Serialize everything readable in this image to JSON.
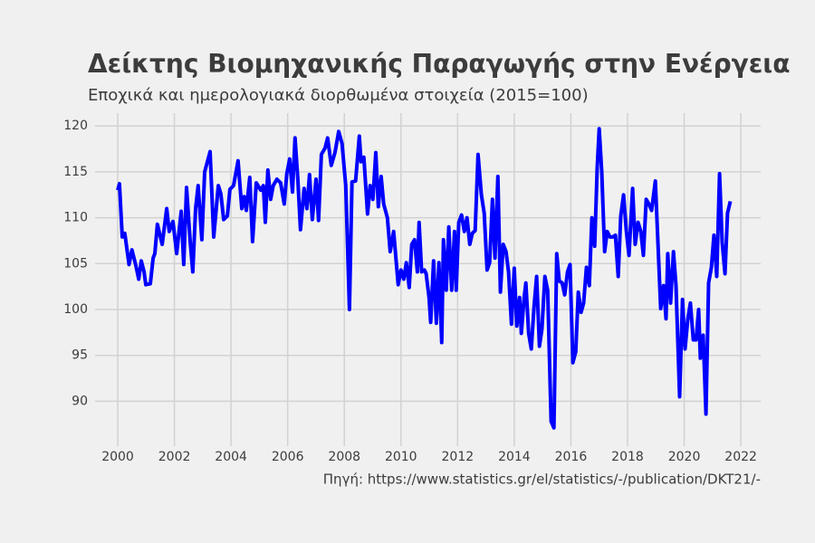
{
  "chart_data": {
    "type": "line",
    "title": "Δείκτης Βιομηχανικής Παραγωγής στην Ενέργεια",
    "subtitle": "Εποχικά και ημερολογιακά διορθωμένα στοιχεία (2015=100)",
    "source": "Πηγή: https://www.statistics.gr/el/statistics/-/publication/DKT21/-",
    "color": "#0000ff",
    "grid": true,
    "xlim": [
      1999.2,
      2022.7
    ],
    "ylim": [
      85.9,
      121.4
    ],
    "xticks": [
      2000,
      2002,
      2004,
      2006,
      2008,
      2010,
      2012,
      2014,
      2016,
      2018,
      2020,
      2022
    ],
    "yticks": [
      90,
      95,
      100,
      105,
      110,
      115,
      120
    ],
    "x": [
      2000.0,
      2000.06,
      2000.16,
      2000.25,
      2000.4,
      2000.5,
      2000.64,
      2000.74,
      2000.83,
      2000.93,
      2000.99,
      2001.15,
      2001.25,
      2001.31,
      2001.4,
      2001.57,
      2001.73,
      2001.82,
      2001.95,
      2002.08,
      2002.24,
      2002.33,
      2002.43,
      2002.56,
      2002.65,
      2002.75,
      2002.84,
      2002.97,
      2003.07,
      2003.26,
      2003.39,
      2003.55,
      2003.64,
      2003.74,
      2003.87,
      2003.96,
      2004.09,
      2004.25,
      2004.38,
      2004.47,
      2004.54,
      2004.66,
      2004.76,
      2004.89,
      2005.05,
      2005.14,
      2005.21,
      2005.3,
      2005.4,
      2005.49,
      2005.62,
      2005.75,
      2005.88,
      2005.97,
      2006.07,
      2006.17,
      2006.26,
      2006.36,
      2006.45,
      2006.58,
      2006.68,
      2006.77,
      2006.87,
      2007.0,
      2007.09,
      2007.19,
      2007.32,
      2007.41,
      2007.54,
      2007.67,
      2007.8,
      2007.92,
      2008.05,
      2008.18,
      2008.27,
      2008.4,
      2008.53,
      2008.59,
      2008.69,
      2008.82,
      2008.91,
      2009.01,
      2009.11,
      2009.2,
      2009.3,
      2009.39,
      2009.52,
      2009.62,
      2009.74,
      2009.9,
      2010.0,
      2010.1,
      2010.19,
      2010.29,
      2010.38,
      2010.48,
      2010.58,
      2010.64,
      2010.73,
      2010.83,
      2010.89,
      2010.99,
      2011.05,
      2011.15,
      2011.25,
      2011.34,
      2011.44,
      2011.5,
      2011.6,
      2011.69,
      2011.79,
      2011.89,
      2011.95,
      2012.04,
      2012.14,
      2012.24,
      2012.33,
      2012.43,
      2012.52,
      2012.62,
      2012.72,
      2012.84,
      2012.94,
      2013.04,
      2013.13,
      2013.23,
      2013.32,
      2013.42,
      2013.51,
      2013.61,
      2013.71,
      2013.8,
      2013.9,
      2014.0,
      2014.09,
      2014.19,
      2014.25,
      2014.35,
      2014.41,
      2014.51,
      2014.6,
      2014.7,
      2014.79,
      2014.89,
      2014.98,
      2015.08,
      2015.18,
      2015.3,
      2015.4,
      2015.5,
      2015.59,
      2015.69,
      2015.78,
      2015.88,
      2015.97,
      2016.07,
      2016.17,
      2016.26,
      2016.36,
      2016.45,
      2016.55,
      2016.65,
      2016.74,
      2016.84,
      2016.93,
      2017.0,
      2017.09,
      2017.19,
      2017.28,
      2017.38,
      2017.47,
      2017.57,
      2017.67,
      2017.76,
      2017.86,
      2017.96,
      2018.05,
      2018.18,
      2018.27,
      2018.37,
      2018.47,
      2018.56,
      2018.66,
      2018.75,
      2018.85,
      2018.98,
      2019.17,
      2019.27,
      2019.36,
      2019.42,
      2019.52,
      2019.62,
      2019.71,
      2019.84,
      2019.94,
      2020.03,
      2020.13,
      2020.22,
      2020.32,
      2020.42,
      2020.51,
      2020.57,
      2020.67,
      2020.77,
      2020.86,
      2020.96,
      2021.05,
      2021.15,
      2021.25,
      2021.34,
      2021.44,
      2021.53,
      2021.63
    ],
    "values": [
      113,
      113.7,
      107.9,
      108.3,
      104.9,
      106.5,
      104.8,
      103.3,
      105.3,
      104.1,
      102.7,
      102.8,
      105.6,
      106.1,
      109.3,
      107.1,
      111,
      108.5,
      109.6,
      106.1,
      110.7,
      104.9,
      113.3,
      107.3,
      104.1,
      111,
      113.5,
      107.6,
      115,
      117.2,
      107.9,
      113.5,
      112.6,
      109.8,
      110.2,
      113.1,
      113.5,
      116.2,
      111,
      112.3,
      110.8,
      114.4,
      107.4,
      113.8,
      113,
      113.5,
      109.5,
      115.2,
      112,
      113.5,
      114.2,
      113.8,
      111.5,
      114.8,
      116.4,
      112.8,
      118.7,
      114.2,
      108.7,
      113.2,
      111,
      114.7,
      109.8,
      114.2,
      109.7,
      116.9,
      117.6,
      118.7,
      115.7,
      117.1,
      119.4,
      118.1,
      113.5,
      100,
      113.9,
      114,
      118.9,
      116.1,
      116.6,
      110.4,
      113.5,
      112,
      117.1,
      111.2,
      114.5,
      111.5,
      110,
      106.3,
      108.5,
      102.7,
      104.3,
      103.3,
      105.1,
      102.4,
      107.1,
      107.6,
      104.1,
      109.5,
      104.1,
      104.3,
      103.9,
      101.3,
      98.6,
      105.3,
      98.5,
      105.1,
      96.4,
      107.6,
      102.1,
      109,
      102.1,
      108.5,
      102.1,
      109.5,
      110.3,
      108.5,
      110,
      107.1,
      108.3,
      108.6,
      116.9,
      112.5,
      110.5,
      104.3,
      105.1,
      112,
      105.6,
      114.5,
      101.9,
      107.1,
      106.3,
      104.1,
      98.4,
      104.5,
      98.2,
      101.3,
      97.4,
      101.3,
      102.9,
      97.4,
      95.7,
      100.4,
      103.6,
      96,
      97.9,
      103.6,
      102.1,
      87.8,
      87.1,
      106.1,
      103.1,
      102.9,
      101.6,
      104.1,
      104.9,
      94.2,
      95.4,
      101.9,
      99.7,
      100.7,
      104.6,
      102.6,
      110,
      106.9,
      115.5,
      119.7,
      115,
      106.3,
      108.5,
      107.9,
      107.9,
      108.1,
      103.6,
      110.2,
      112.5,
      108.5,
      105.9,
      113.2,
      107.1,
      109.5,
      108.5,
      105.9,
      112,
      111.5,
      110.8,
      114,
      100.1,
      102.6,
      99,
      106.1,
      100.7,
      106.3,
      102.6,
      90.5,
      101.1,
      95.7,
      99,
      100.7,
      96.7,
      96.7,
      100,
      94.7,
      97.2,
      88.6,
      102.9,
      104.6,
      108.1,
      103.6,
      114.8,
      107.3,
      103.9,
      110.5,
      111.8
    ]
  }
}
